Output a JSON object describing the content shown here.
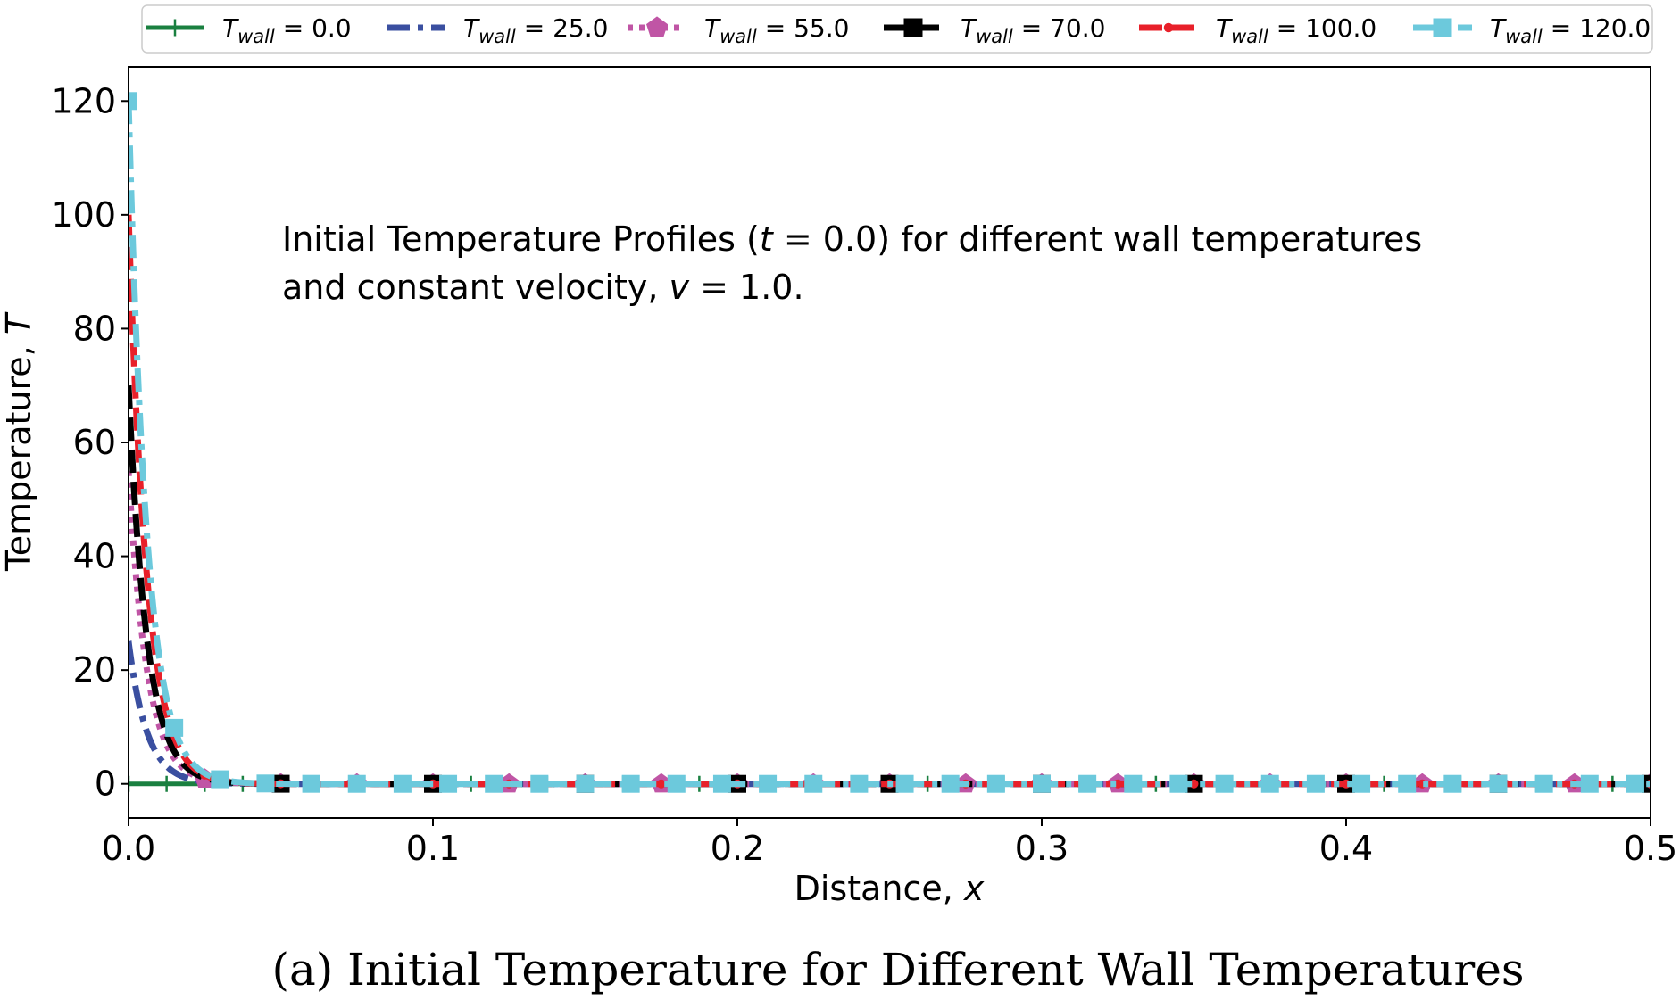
{
  "chart_data": {
    "type": "line",
    "xlabel_text": "Distance, ",
    "xlabel_var": "x",
    "ylabel_text": "Temperature, ",
    "ylabel_var": "T",
    "xlim": [
      0.0,
      0.5
    ],
    "ylim": [
      -6,
      126
    ],
    "xticks": [
      0.0,
      0.1,
      0.2,
      0.3,
      0.4,
      0.5
    ],
    "xtick_labels": [
      "0.0",
      "0.1",
      "0.2",
      "0.3",
      "0.4",
      "0.5"
    ],
    "yticks": [
      0,
      20,
      40,
      60,
      80,
      100,
      120
    ],
    "ytick_labels": [
      "0",
      "20",
      "40",
      "60",
      "80",
      "100",
      "120"
    ],
    "decay_length": 0.006,
    "annotation": {
      "line1_pre": "Initial Temperature Profiles (",
      "line1_var": "t",
      "line1_post": " = 0.0) for different wall temperatures",
      "line2_pre": "and constant velocity, ",
      "line2_var": "v",
      "line2_post": " = 1.0."
    },
    "legend_placement": "top, outside",
    "series": [
      {
        "name": "T_wall = 0.0",
        "label_var": "T",
        "label_sub": "wall",
        "label_val": " = 0.0",
        "wall_temperature": 0.0,
        "color": "#1a8040",
        "dash": "solid",
        "marker": "plus",
        "marker_every": 0.0125,
        "marker_offset": 0.0
      },
      {
        "name": "T_wall = 25.0",
        "label_var": "T",
        "label_sub": "wall",
        "label_val": " = 25.0",
        "wall_temperature": 25.0,
        "color": "#3a4fa0",
        "dash": "dashdot",
        "marker": "none",
        "marker_every": 0,
        "marker_offset": 0
      },
      {
        "name": "T_wall = 55.0",
        "label_var": "T",
        "label_sub": "wall",
        "label_val": " = 55.0",
        "wall_temperature": 55.0,
        "color": "#c055a5",
        "dash": "dotted",
        "marker": "pentagon",
        "marker_every": 0.025,
        "marker_offset": 0.025
      },
      {
        "name": "T_wall = 70.0",
        "label_var": "T",
        "label_sub": "wall",
        "label_val": " = 70.0",
        "wall_temperature": 70.0,
        "color": "#000000",
        "dash": "dashed",
        "marker": "square",
        "marker_every": 0.05,
        "marker_offset": 0.05
      },
      {
        "name": "T_wall = 100.0",
        "label_var": "T",
        "label_sub": "wall",
        "label_val": " = 100.0",
        "wall_temperature": 100.0,
        "color": "#e8202a",
        "dash": "dashed",
        "marker": "dot",
        "marker_every": 0.025,
        "marker_offset": 0.025
      },
      {
        "name": "T_wall = 120.0",
        "label_var": "T",
        "label_sub": "wall",
        "label_val": " = 120.0",
        "wall_temperature": 120.0,
        "color": "#6cc9dc",
        "dash": "dashdot",
        "marker": "square",
        "marker_every": 0.015,
        "marker_offset": 0.0
      }
    ]
  },
  "caption": "(a) Initial Temperature for Different Wall Temperatures"
}
